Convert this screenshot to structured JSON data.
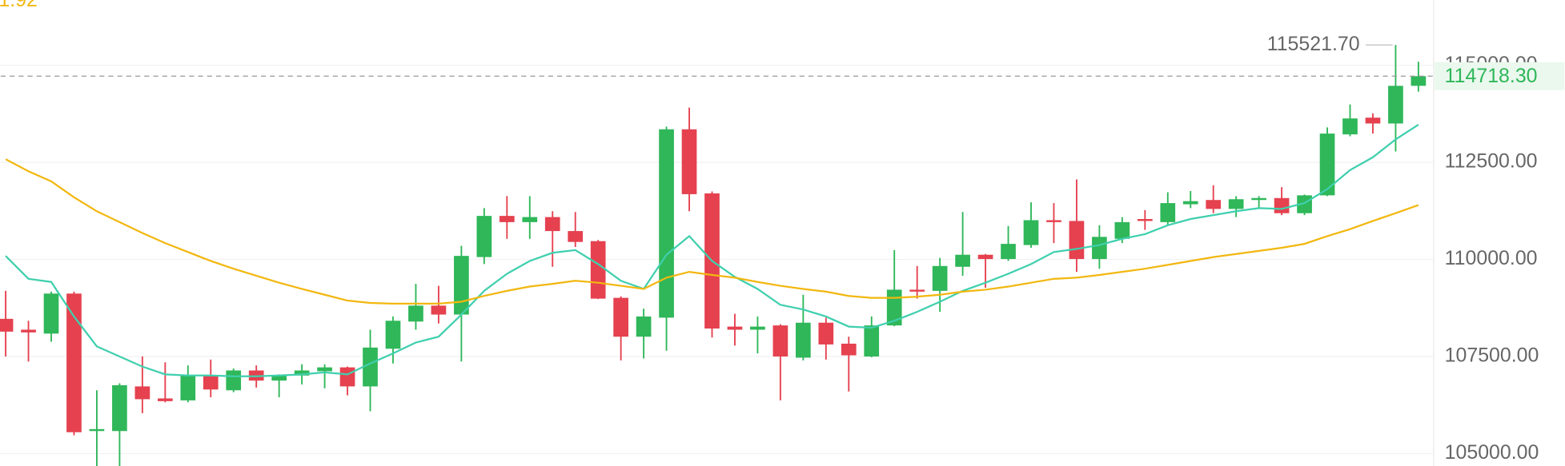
{
  "chart_data": {
    "type": "candlestick",
    "annotation": "1.92",
    "up_color": "#2fb759",
    "down_color": "#e5414f",
    "open": [
      108470,
      108190,
      108090,
      109120,
      105580,
      105580,
      106730,
      106420,
      106370,
      107010,
      106630,
      107140,
      106880,
      107010,
      107120,
      107220,
      106730,
      107700,
      108400,
      108810,
      108580,
      110060,
      111120,
      110960,
      111090,
      110730,
      110470,
      109010,
      108010,
      108500,
      113350,
      111700,
      108270,
      108190,
      108300,
      107470,
      108370,
      107830,
      107500,
      108300,
      109220,
      109190,
      109810,
      110120,
      110010,
      110370,
      111010,
      110990,
      110010,
      110530,
      111040,
      110960,
      111420,
      111530,
      111300,
      111530,
      111580,
      111190,
      111650,
      113220,
      113650,
      113500,
      114470
    ],
    "high": [
      109190,
      108420,
      109170,
      109170,
      106630,
      106810,
      107500,
      107350,
      107270,
      107420,
      107190,
      107270,
      107040,
      107300,
      107300,
      107240,
      108190,
      108530,
      109370,
      109320,
      110350,
      111320,
      111630,
      111630,
      111240,
      111220,
      110500,
      109050,
      108730,
      113420,
      113910,
      111750,
      108600,
      108530,
      108330,
      109090,
      108500,
      108010,
      108530,
      110240,
      109830,
      110040,
      111220,
      110140,
      110860,
      111470,
      111450,
      112060,
      110880,
      111090,
      111270,
      111730,
      111760,
      111910,
      111630,
      111630,
      111860,
      111670,
      113400,
      113990,
      113760,
      115521.7,
      115090
    ],
    "low": [
      107500,
      107370,
      107880,
      105470,
      104600,
      104600,
      106040,
      106320,
      106320,
      106450,
      106580,
      106700,
      106450,
      106780,
      106680,
      106500,
      106090,
      107320,
      108190,
      108350,
      107370,
      109880,
      110530,
      110530,
      109810,
      110320,
      108980,
      107400,
      107450,
      107650,
      111240,
      107990,
      107780,
      107580,
      106370,
      107400,
      107420,
      106600,
      107480,
      108280,
      108990,
      108650,
      109580,
      109270,
      109960,
      110300,
      110420,
      109680,
      109760,
      110420,
      110760,
      110880,
      111320,
      111190,
      111090,
      111320,
      111140,
      111140,
      111630,
      113170,
      113240,
      112780,
      114320
    ],
    "close": [
      108140,
      108120,
      109120,
      105550,
      105630,
      106760,
      106400,
      106350,
      107010,
      106650,
      107140,
      106880,
      107010,
      107140,
      107220,
      106730,
      107730,
      108420,
      108810,
      108580,
      110090,
      111120,
      110960,
      111090,
      110730,
      110450,
      108990,
      108010,
      108530,
      113350,
      111680,
      108220,
      108190,
      108270,
      107500,
      108370,
      107810,
      107530,
      108300,
      109220,
      109170,
      109830,
      110120,
      110010,
      110400,
      111010,
      110960,
      110010,
      110580,
      110960,
      110990,
      111450,
      111500,
      111300,
      111550,
      111580,
      111190,
      111650,
      113240,
      113630,
      113500,
      114470,
      114718.3
    ],
    "lines": [
      {
        "color": "#3fcfae",
        "values": [
          110090,
          109500,
          109420,
          108530,
          107760,
          107500,
          107240,
          107040,
          107010,
          107010,
          106990,
          106990,
          107010,
          107040,
          107090,
          107040,
          107320,
          107580,
          107860,
          108010,
          108580,
          109190,
          109630,
          109960,
          110170,
          110240,
          109880,
          109450,
          109240,
          110120,
          110600,
          109960,
          109550,
          109240,
          108830,
          108710,
          108530,
          108270,
          108240,
          108420,
          108650,
          108910,
          109190,
          109400,
          109630,
          109880,
          110190,
          110270,
          110370,
          110530,
          110650,
          110880,
          111040,
          111140,
          111240,
          111320,
          111300,
          111450,
          111810,
          112300,
          112630,
          113090,
          113470
        ]
      },
      {
        "color": "#f2b70f",
        "values": [
          112580,
          112270,
          112010,
          111600,
          111240,
          110960,
          110680,
          110420,
          110190,
          109960,
          109760,
          109580,
          109400,
          109240,
          109090,
          108940,
          108880,
          108860,
          108860,
          108860,
          108910,
          109060,
          109190,
          109300,
          109370,
          109450,
          109400,
          109320,
          109240,
          109530,
          109680,
          109600,
          109530,
          109420,
          109320,
          109240,
          109170,
          109060,
          109010,
          109010,
          109040,
          109090,
          109170,
          109220,
          109300,
          109400,
          109500,
          109530,
          109600,
          109680,
          109760,
          109860,
          109960,
          110060,
          110140,
          110220,
          110300,
          110400,
          110600,
          110780,
          110990,
          111190,
          111400
        ]
      }
    ],
    "last_price": {
      "value": 114718.3,
      "label": "114718.30"
    },
    "max_marker": {
      "value": 115521.7,
      "label": "115521.70"
    },
    "ylim": [
      104680,
      116680
    ],
    "yticks": [
      {
        "value": 105000,
        "label": "105000.00"
      },
      {
        "value": 107500,
        "label": "107500.00"
      },
      {
        "value": 110000,
        "label": "110000.00"
      },
      {
        "value": 112500,
        "label": "112500.00"
      },
      {
        "value": 115000,
        "label": "115000.00"
      }
    ],
    "grid": true
  }
}
